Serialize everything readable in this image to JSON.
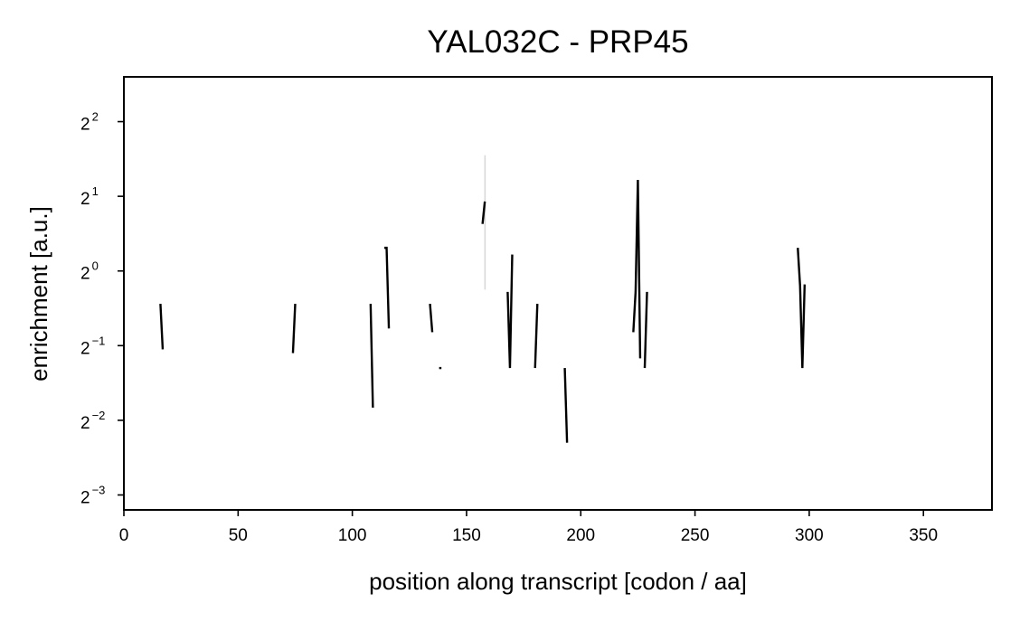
{
  "chart_data": {
    "type": "line",
    "title": "YAL032C - PRP45",
    "xlabel": "position along transcript [codon / aa]",
    "ylabel": "enrichment [a.u.]",
    "xlim": [
      0,
      380
    ],
    "ylim_log2": [
      -3.2,
      2.6
    ],
    "y_scale": "log2",
    "grid": false,
    "line_color": "#000000",
    "band_color": "#d9d9d9",
    "x_ticks": [
      0,
      50,
      100,
      150,
      200,
      250,
      300,
      350
    ],
    "x_tick_labels": [
      "0",
      "50",
      "100",
      "150",
      "200",
      "250",
      "300",
      "350"
    ],
    "y_ticks": [
      {
        "exp": -3,
        "base": "2",
        "sup": "−3"
      },
      {
        "exp": -2,
        "base": "2",
        "sup": "−2"
      },
      {
        "exp": -1,
        "base": "2",
        "sup": "−1"
      },
      {
        "exp": 0,
        "base": "2",
        "sup": "0"
      },
      {
        "exp": 1,
        "base": "2",
        "sup": "1"
      },
      {
        "exp": 2,
        "base": "2",
        "sup": "2"
      }
    ],
    "segments": [
      {
        "x": [
          16,
          17
        ],
        "y_log2": [
          -0.44,
          -1.05
        ]
      },
      {
        "x": [
          74,
          75
        ],
        "y_log2": [
          -1.1,
          -0.44
        ]
      },
      {
        "x": [
          108,
          109
        ],
        "y_log2": [
          -0.44,
          -1.83
        ]
      },
      {
        "x": [
          114,
          115,
          116
        ],
        "y_log2": [
          0.31,
          0.31,
          -0.77
        ]
      },
      {
        "x": [
          134,
          135
        ],
        "y_log2": [
          -0.44,
          -0.82
        ]
      },
      {
        "x": [
          138,
          139
        ],
        "y_log2": [
          -1.3,
          -1.3
        ]
      },
      {
        "x": [
          157,
          158
        ],
        "y_log2": [
          0.63,
          0.93
        ]
      },
      {
        "x": [
          168,
          169,
          170
        ],
        "y_log2": [
          -0.28,
          -1.3,
          0.22
        ]
      },
      {
        "x": [
          180,
          181
        ],
        "y_log2": [
          -1.3,
          -0.44
        ]
      },
      {
        "x": [
          193,
          194
        ],
        "y_log2": [
          -1.3,
          -2.3
        ]
      },
      {
        "x": [
          223,
          224,
          225,
          226
        ],
        "y_log2": [
          -0.82,
          -0.28,
          1.22,
          -1.17
        ]
      },
      {
        "x": [
          228,
          229
        ],
        "y_log2": [
          -1.3,
          -0.28
        ]
      },
      {
        "x": [
          295,
          296,
          297,
          298
        ],
        "y_log2": [
          0.31,
          -0.2,
          -1.3,
          -0.18
        ]
      }
    ],
    "bands": [
      {
        "x": 158,
        "y_log2_low": -0.25,
        "y_log2_high": 1.55
      }
    ]
  }
}
